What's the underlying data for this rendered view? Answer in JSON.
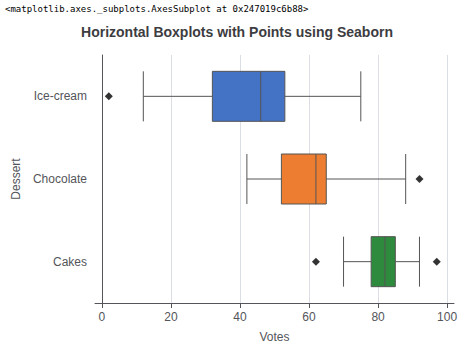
{
  "chart_data": {
    "type": "boxplot",
    "title": "Horizontal Boxplots with Points using Seaborn",
    "annotation": "<matplotlib.axes._subplots.AxesSubplot at 0x247019c6b88>",
    "xlabel": "Votes",
    "ylabel": "Dessert",
    "orientation": "horizontal",
    "categories": [
      "Cakes",
      "Chocolate",
      "Ice-cream"
    ],
    "colors": [
      "#2E8B3E",
      "#ED7D31",
      "#4472C4"
    ],
    "values": [
      [
        70,
        78,
        82,
        85,
        92
      ],
      [
        42,
        52,
        62,
        65,
        88
      ],
      [
        12,
        32,
        46,
        53,
        75
      ]
    ],
    "outliers": [
      [
        62,
        97
      ],
      [
        92
      ],
      [
        2
      ]
    ],
    "marker": "diamond",
    "xlim": [
      -2,
      102
    ],
    "xticks": [
      0,
      20,
      40,
      60,
      80,
      100
    ],
    "grid": true
  }
}
